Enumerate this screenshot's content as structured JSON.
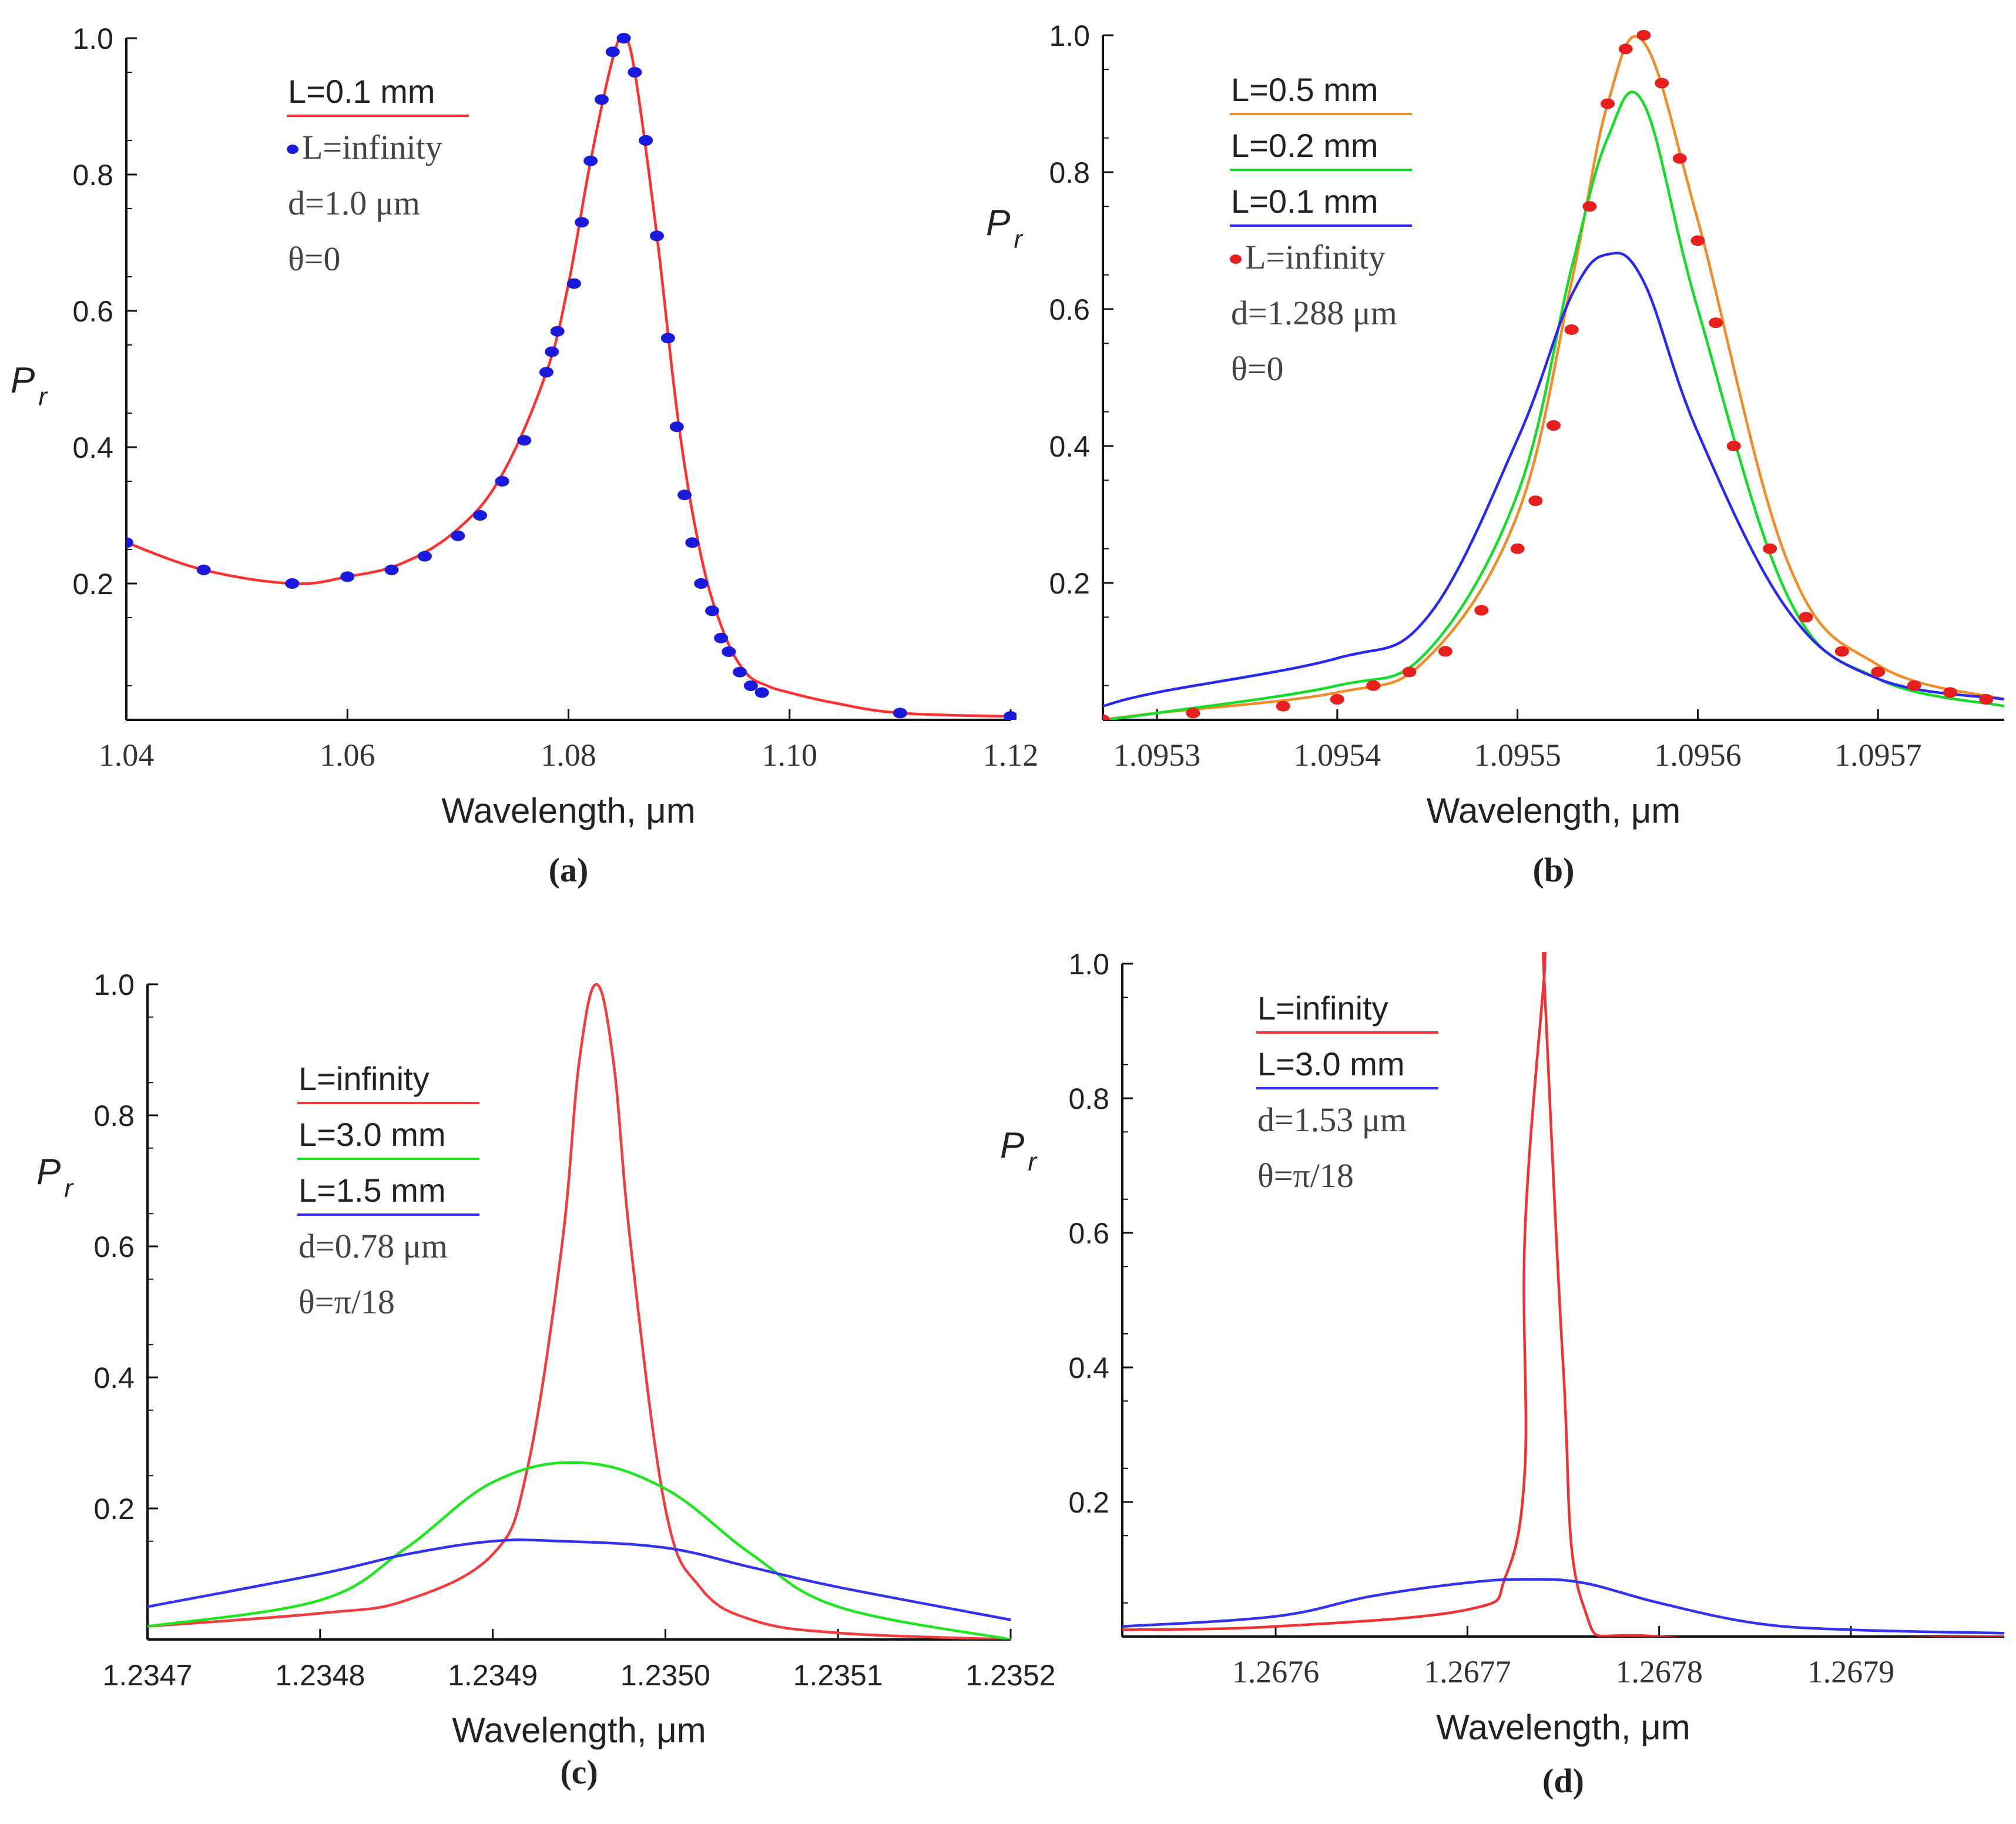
{
  "chart_data": [
    {
      "panel": "(a)",
      "type": "line",
      "xlabel": "Wavelength, μm",
      "ylabel": "P",
      "ylabel_sub": "r",
      "xlim": [
        1.04,
        1.12
      ],
      "ylim": [
        0.0,
        1.0
      ],
      "xticks": [
        "1.04",
        "1.06",
        "1.08",
        "1.10",
        "1.12"
      ],
      "yticks": [
        "0.2",
        "0.4",
        "0.6",
        "0.8",
        "1.0"
      ],
      "legend": [
        "L=0.1 mm",
        "•L=infinity",
        "d=1.0 μm",
        "θ=0"
      ],
      "series": [
        {
          "name": "L=0.1 mm",
          "style": "line",
          "color": "#ff3030",
          "x": [
            1.04,
            1.047,
            1.055,
            1.06,
            1.065,
            1.07,
            1.074,
            1.078,
            1.08,
            1.082,
            1.084,
            1.085,
            1.086,
            1.088,
            1.09,
            1.092,
            1.094,
            1.096,
            1.098,
            1.1,
            1.104,
            1.11,
            1.12
          ],
          "y": [
            0.26,
            0.22,
            0.2,
            0.21,
            0.23,
            0.28,
            0.36,
            0.51,
            0.64,
            0.82,
            0.97,
            1.0,
            0.95,
            0.71,
            0.43,
            0.24,
            0.13,
            0.07,
            0.05,
            0.04,
            0.025,
            0.01,
            0.005
          ]
        },
        {
          "name": "L=infinity",
          "style": "points",
          "color": "#1a1adc",
          "x": [
            1.04,
            1.047,
            1.055,
            1.06,
            1.064,
            1.067,
            1.07,
            1.072,
            1.074,
            1.076,
            1.078,
            1.0785,
            1.079,
            1.0805,
            1.0812,
            1.082,
            1.083,
            1.084,
            1.085,
            1.086,
            1.087,
            1.088,
            1.089,
            1.0898,
            1.0905,
            1.0912,
            1.092,
            1.093,
            1.0938,
            1.0945,
            1.0955,
            1.0965,
            1.0975,
            1.11,
            1.12
          ],
          "y": [
            0.26,
            0.22,
            0.2,
            0.21,
            0.22,
            0.24,
            0.27,
            0.3,
            0.35,
            0.41,
            0.51,
            0.54,
            0.57,
            0.64,
            0.73,
            0.82,
            0.91,
            0.98,
            1.0,
            0.95,
            0.85,
            0.71,
            0.56,
            0.43,
            0.33,
            0.26,
            0.2,
            0.16,
            0.12,
            0.1,
            0.07,
            0.05,
            0.04,
            0.01,
            0.005
          ]
        }
      ]
    },
    {
      "panel": "(b)",
      "type": "line",
      "xlabel": "Wavelength, μm",
      "ylabel": "P",
      "ylabel_sub": "r",
      "xlim": [
        1.09527,
        1.09577
      ],
      "ylim": [
        0.0,
        1.0
      ],
      "xticks": [
        "1.0953",
        "1.0954",
        "1.0955",
        "1.0956",
        "1.0957"
      ],
      "yticks": [
        "0.2",
        "0.4",
        "0.6",
        "0.8",
        "1.0"
      ],
      "legend": [
        "L=0.5 mm",
        "L=0.2 mm",
        "L=0.1 mm",
        "•L=infinity",
        "d=1.288 μm",
        "θ=0"
      ],
      "series": [
        {
          "name": "L=0.5 mm",
          "style": "line",
          "color": "#f08c28",
          "x": [
            1.09527,
            1.0953,
            1.0954,
            1.09545,
            1.0955,
            1.09553,
            1.09555,
            1.09557,
            1.0956,
            1.09565,
            1.0957,
            1.09577
          ],
          "y": [
            0.0,
            0.01,
            0.04,
            0.09,
            0.3,
            0.64,
            0.9,
            0.99,
            0.73,
            0.23,
            0.08,
            0.03
          ]
        },
        {
          "name": "L=0.2 mm",
          "style": "line",
          "color": "#14dc28",
          "x": [
            1.09527,
            1.0953,
            1.0954,
            1.09545,
            1.0955,
            1.09553,
            1.09555,
            1.09557,
            1.0956,
            1.09565,
            1.0957,
            1.09577
          ],
          "y": [
            0.0,
            0.01,
            0.05,
            0.1,
            0.33,
            0.66,
            0.85,
            0.9,
            0.6,
            0.18,
            0.06,
            0.02
          ]
        },
        {
          "name": "L=0.1 mm",
          "style": "line",
          "color": "#2828f0",
          "x": [
            1.09527,
            1.0953,
            1.0954,
            1.09545,
            1.0955,
            1.09553,
            1.09555,
            1.09557,
            1.0956,
            1.09565,
            1.0957,
            1.09577
          ],
          "y": [
            0.02,
            0.04,
            0.09,
            0.15,
            0.41,
            0.62,
            0.68,
            0.64,
            0.42,
            0.16,
            0.06,
            0.03
          ]
        },
        {
          "name": "L=infinity",
          "style": "points",
          "color": "#e61e1e",
          "x": [
            1.09527,
            1.09532,
            1.09537,
            1.0954,
            1.09542,
            1.09544,
            1.09546,
            1.09548,
            1.0955,
            1.09551,
            1.09552,
            1.09553,
            1.09554,
            1.09555,
            1.09556,
            1.09557,
            1.09558,
            1.09559,
            1.0956,
            1.09561,
            1.09562,
            1.09564,
            1.09566,
            1.09568,
            1.0957,
            1.09572,
            1.09574,
            1.09576
          ],
          "y": [
            0.0,
            0.01,
            0.02,
            0.03,
            0.05,
            0.07,
            0.1,
            0.16,
            0.25,
            0.32,
            0.43,
            0.57,
            0.75,
            0.9,
            0.98,
            1.0,
            0.93,
            0.82,
            0.7,
            0.58,
            0.4,
            0.25,
            0.15,
            0.1,
            0.07,
            0.05,
            0.04,
            0.03
          ]
        }
      ]
    },
    {
      "panel": "(c)",
      "type": "line",
      "xlabel": "Wavelength, μm",
      "ylabel": "P",
      "ylabel_sub": "r",
      "xlim": [
        1.2347,
        1.2352
      ],
      "ylim": [
        0.0,
        1.0
      ],
      "xticks": [
        "1.2347",
        "1.2348",
        "1.2349",
        "1.2350",
        "1.2351",
        "1.2352"
      ],
      "yticks": [
        "0.2",
        "0.4",
        "0.6",
        "0.8",
        "1.0"
      ],
      "legend": [
        "L=infinity",
        "L=3.0 mm",
        "L=1.5 mm",
        "d=0.78 μm",
        "θ=π/18"
      ],
      "series": [
        {
          "name": "L=infinity",
          "style": "line",
          "color": "#f03c3c",
          "x": [
            1.2347,
            1.2348,
            1.23485,
            1.2349,
            1.23492,
            1.23494,
            1.23495,
            1.23496,
            1.23497,
            1.23498,
            1.235,
            1.23502,
            1.23505,
            1.2351,
            1.2352
          ],
          "y": [
            0.02,
            0.04,
            0.06,
            0.13,
            0.26,
            0.6,
            0.88,
            1.0,
            0.88,
            0.6,
            0.2,
            0.08,
            0.03,
            0.01,
            0.0
          ]
        },
        {
          "name": "L=3.0 mm",
          "style": "line",
          "color": "#1ee61e",
          "x": [
            1.2347,
            1.2348,
            1.23485,
            1.2349,
            1.23495,
            1.235,
            1.23505,
            1.2351,
            1.2352
          ],
          "y": [
            0.02,
            0.06,
            0.14,
            0.24,
            0.27,
            0.23,
            0.13,
            0.05,
            0.0
          ]
        },
        {
          "name": "L=1.5 mm",
          "style": "line",
          "color": "#3232f0",
          "x": [
            1.2347,
            1.2348,
            1.23485,
            1.2349,
            1.23494,
            1.235,
            1.23505,
            1.2351,
            1.2352
          ],
          "y": [
            0.05,
            0.1,
            0.13,
            0.15,
            0.15,
            0.14,
            0.11,
            0.08,
            0.03
          ]
        }
      ]
    },
    {
      "panel": "(d)",
      "type": "line",
      "xlabel": "Wavelength, μm",
      "ylabel": "P",
      "ylabel_sub": "r",
      "xlim": [
        1.26752,
        1.26798
      ],
      "ylim": [
        0.0,
        1.0
      ],
      "xticks": [
        "1.2676",
        "1.2677",
        "1.2678",
        "1.2679"
      ],
      "yticks": [
        "0.2",
        "0.4",
        "0.6",
        "0.8",
        "1.0"
      ],
      "legend": [
        "L=infinity",
        "L=3.0 mm",
        "d=1.53 μm",
        "θ=π/18"
      ],
      "series": [
        {
          "name": "L=infinity",
          "style": "line",
          "color": "#f03232",
          "x": [
            1.26752,
            1.2676,
            1.2677,
            1.26772,
            1.26773,
            1.26773,
            1.26774,
            1.26774,
            1.26775,
            1.26776,
            1.2678,
            1.26798
          ],
          "y": [
            0.01,
            0.015,
            0.04,
            0.09,
            0.25,
            0.6,
            0.98,
            0.98,
            0.4,
            0.05,
            0.0,
            0.0
          ]
        },
        {
          "name": "L=3.0 mm",
          "style": "line",
          "color": "#3232f0",
          "x": [
            1.26752,
            1.2676,
            1.26765,
            1.2677,
            1.26773,
            1.26776,
            1.2678,
            1.26785,
            1.2679,
            1.26798
          ],
          "y": [
            0.015,
            0.03,
            0.06,
            0.08,
            0.085,
            0.08,
            0.05,
            0.02,
            0.01,
            0.005
          ]
        }
      ]
    }
  ]
}
